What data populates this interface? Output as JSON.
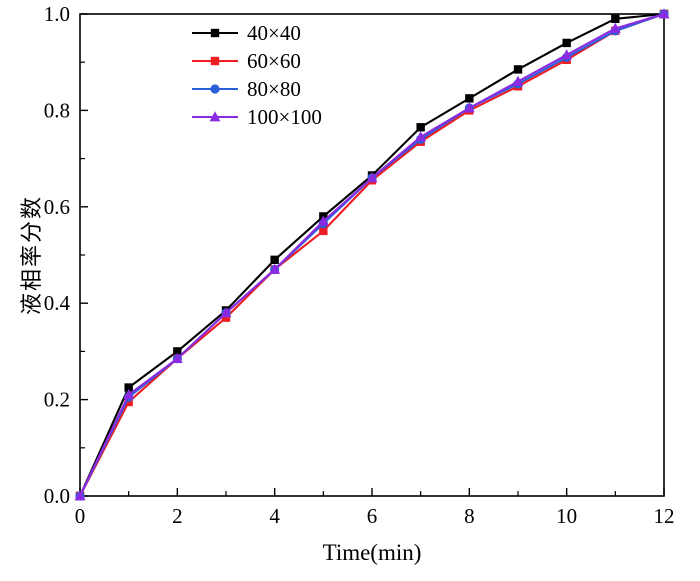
{
  "chart_data": {
    "type": "line",
    "title": "",
    "xlabel": "Time(min)",
    "ylabel": "液相率分数",
    "xlim": [
      0,
      12
    ],
    "ylim": [
      0.0,
      1.0
    ],
    "x_ticks": [
      0,
      2,
      4,
      6,
      8,
      10,
      12
    ],
    "x_minor_ticks": [
      1,
      3,
      5,
      7,
      9,
      11
    ],
    "y_ticks": [
      "0.0",
      "0.2",
      "0.4",
      "0.6",
      "0.8",
      "1.0"
    ],
    "y_minor_ticks": [
      0.1,
      0.3,
      0.5,
      0.7,
      0.9
    ],
    "grid": false,
    "legend_position": "inside-top-left",
    "x": [
      0,
      1,
      2,
      3,
      4,
      5,
      6,
      7,
      8,
      9,
      10,
      11,
      12
    ],
    "series": [
      {
        "name": "40×40",
        "color": "#000000",
        "marker": "square",
        "values": [
          0.0,
          0.225,
          0.3,
          0.385,
          0.49,
          0.58,
          0.665,
          0.765,
          0.825,
          0.885,
          0.94,
          0.99,
          1.0
        ]
      },
      {
        "name": "60×60",
        "color": "#ee1d23",
        "marker": "square",
        "values": [
          0.0,
          0.195,
          0.285,
          0.37,
          0.47,
          0.55,
          0.655,
          0.735,
          0.8,
          0.85,
          0.905,
          0.965,
          1.0
        ]
      },
      {
        "name": "80×80",
        "color": "#2b5fd9",
        "marker": "circle",
        "values": [
          0.0,
          0.205,
          0.285,
          0.38,
          0.47,
          0.565,
          0.66,
          0.74,
          0.805,
          0.855,
          0.91,
          0.965,
          1.0
        ]
      },
      {
        "name": "100×100",
        "color": "#8a2be2",
        "marker": "triangle",
        "values": [
          0.0,
          0.21,
          0.285,
          0.38,
          0.47,
          0.57,
          0.66,
          0.745,
          0.805,
          0.86,
          0.915,
          0.97,
          1.0
        ]
      }
    ]
  }
}
